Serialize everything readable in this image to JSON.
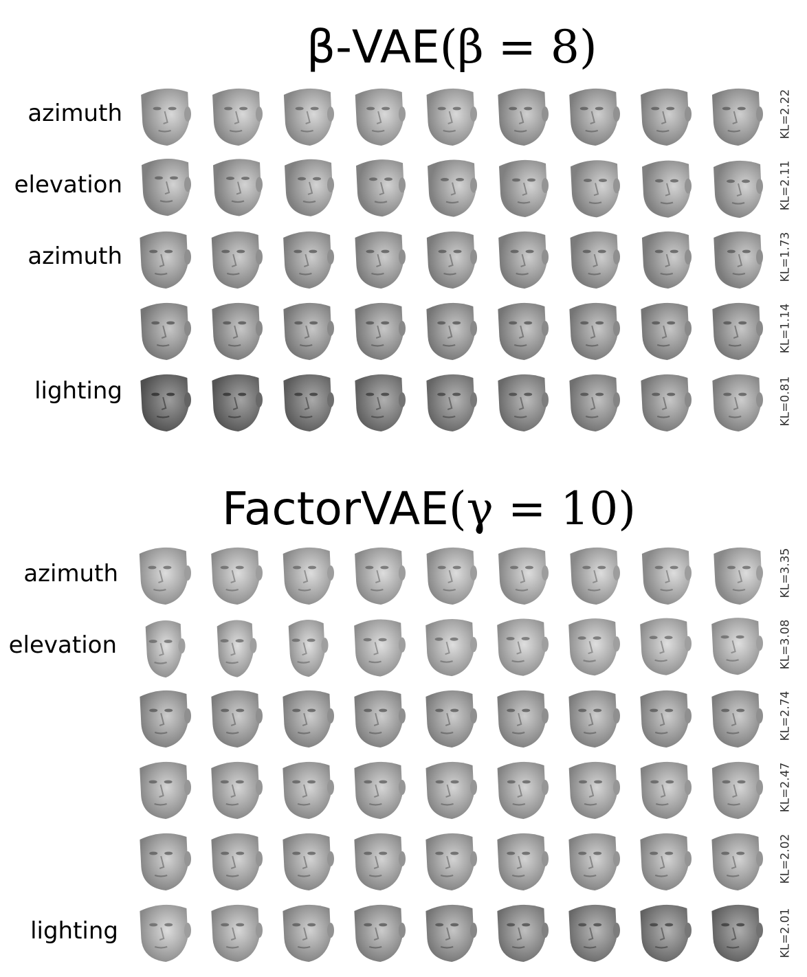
{
  "panels": [
    {
      "title_prefix": "β-VAE",
      "title_math": "(β = 8)",
      "rows": [
        {
          "label": "azimuth",
          "kl": "KL=2.22"
        },
        {
          "label": "elevation",
          "kl": "KL=2.11"
        },
        {
          "label": "azimuth",
          "kl": "KL=1.73"
        },
        {
          "label": "",
          "kl": "KL=1.14"
        },
        {
          "label": "lighting",
          "kl": "KL=0.81"
        }
      ]
    },
    {
      "title_prefix": "FactorVAE",
      "title_math": "(γ = 10)",
      "rows": [
        {
          "label": "azimuth",
          "kl": "KL=3.35"
        },
        {
          "label": "elevation",
          "kl": "KL=3.08"
        },
        {
          "label": "",
          "kl": "KL=2.74"
        },
        {
          "label": "",
          "kl": "KL=2.47"
        },
        {
          "label": "",
          "kl": "KL=2.02"
        },
        {
          "label": "lighting",
          "kl": "KL=2.01"
        }
      ]
    }
  ]
}
